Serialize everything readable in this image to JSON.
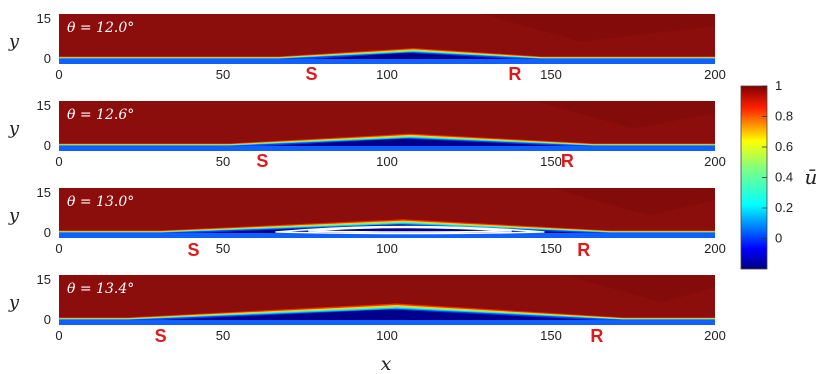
{
  "chart_data": {
    "type": "heatmap",
    "x_axis": {
      "label": "x",
      "range": [
        0,
        200
      ],
      "ticks": [
        0,
        50,
        100,
        150,
        200
      ]
    },
    "y_axis": {
      "label": "y",
      "range": [
        0,
        15
      ],
      "ticks": [
        0,
        15
      ]
    },
    "colorbar": {
      "label": "ū",
      "range": [
        -0.2,
        1.0
      ],
      "ticks": [
        0,
        0.2,
        0.4,
        0.6,
        0.8,
        1
      ]
    },
    "panels": [
      {
        "annotation": "θ = 12.0°",
        "theta_deg": 12.0,
        "S_x": 77,
        "R_x": 139,
        "peak_x": 108,
        "peak_y": 3.0,
        "recirculation": false
      },
      {
        "annotation": "θ = 12.6°",
        "theta_deg": 12.6,
        "S_x": 62,
        "R_x": 155,
        "peak_x": 107,
        "peak_y": 3.5,
        "recirculation": false
      },
      {
        "annotation": "θ = 13.0°",
        "theta_deg": 13.0,
        "S_x": 41,
        "R_x": 160,
        "peak_x": 105,
        "peak_y": 4.0,
        "recirculation": true
      },
      {
        "annotation": "θ = 13.4°",
        "theta_deg": 13.4,
        "S_x": 31,
        "R_x": 164,
        "peak_x": 103,
        "peak_y": 5.0,
        "recirculation": false
      }
    ],
    "markers": {
      "S": "S",
      "R": "R"
    }
  }
}
